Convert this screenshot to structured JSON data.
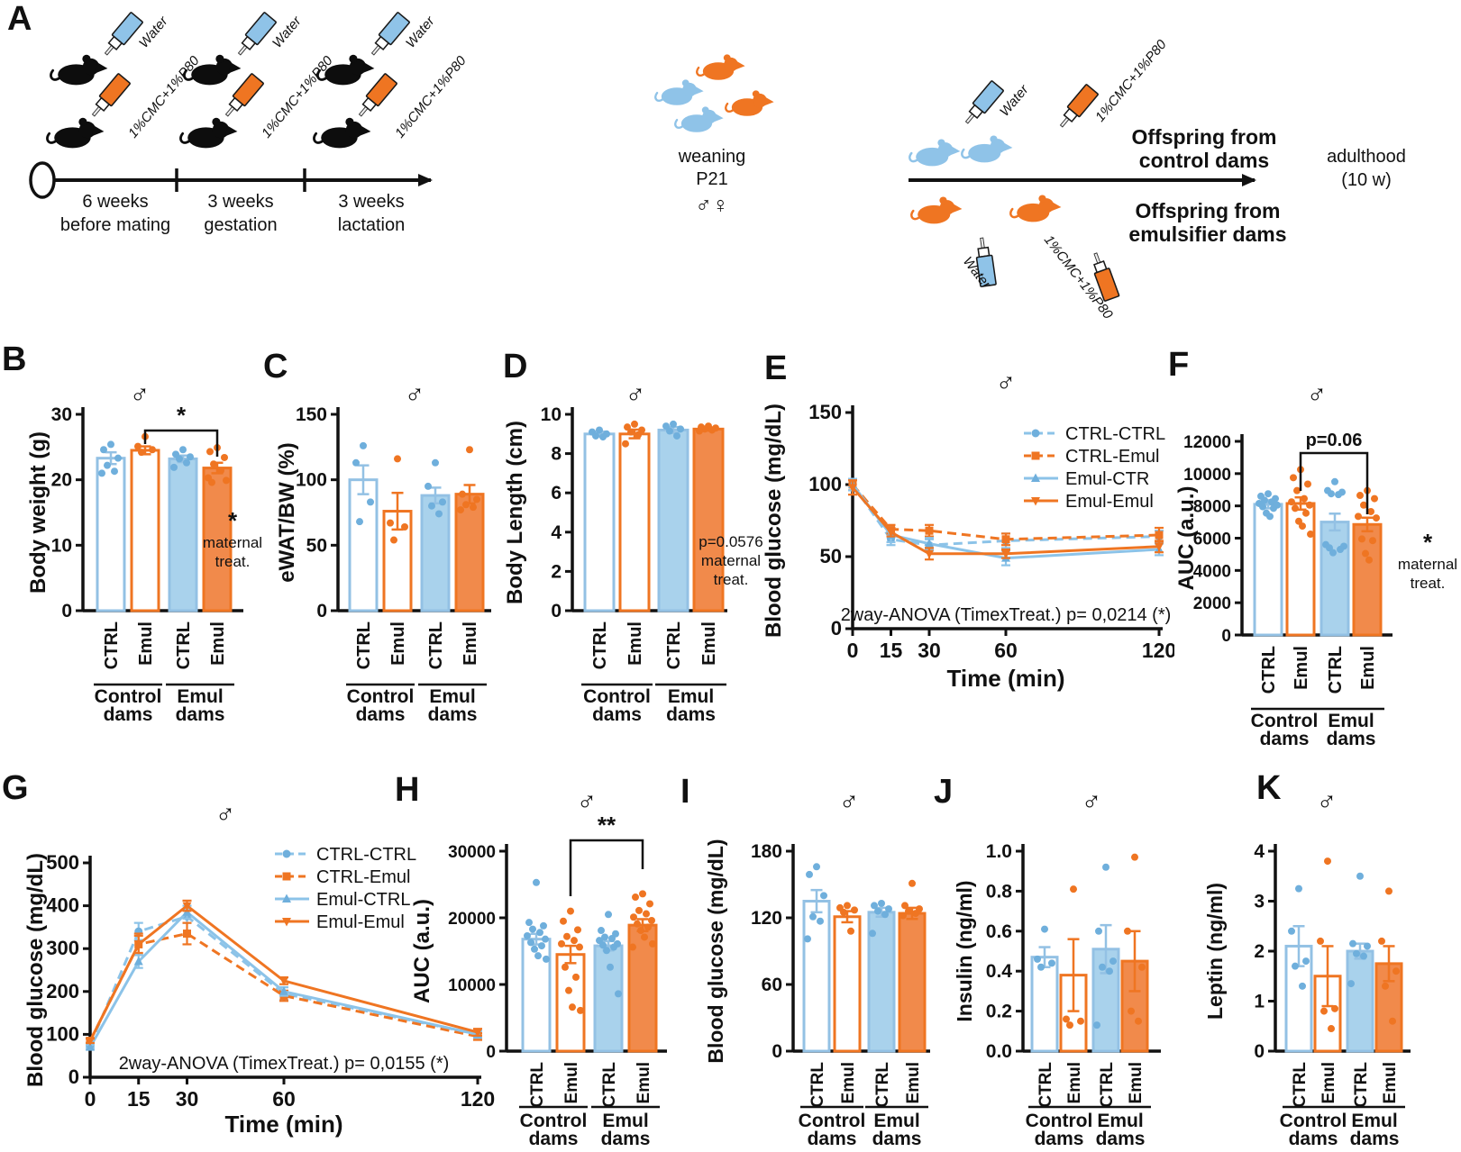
{
  "male_symbol": "♂",
  "colors": {
    "blue_fill": "#A9D2EC",
    "blue_stroke": "#93C1E4",
    "blue_marker": "#6FAFDC",
    "blue_line": "#8CC3E8",
    "blue_label": "#92C5E8",
    "orange_fill": "#F18A4B",
    "orange_stroke": "#EF7522",
    "orange_label": "#F0761F",
    "black": "#111111"
  },
  "panel_a": {
    "letter": "A",
    "bottle_water_label": "Water",
    "bottle_emul_label": "1%CMC+1%P80",
    "timeline": [
      {
        "line1": "6 weeks",
        "line2": "before mating"
      },
      {
        "line1": "3 weeks",
        "line2": "gestation"
      },
      {
        "line1": "3 weeks",
        "line2": "lactation"
      }
    ],
    "weaning": {
      "line1": "weaning",
      "line2": "P21",
      "symbols": "♂♀"
    },
    "offspring_control": {
      "line1": "Offspring from",
      "line2": "control dams"
    },
    "offspring_emul": {
      "line1": "Offspring from",
      "line2": "emulsifier dams"
    },
    "adulthood": {
      "line1": "adulthood",
      "line2": "(10 w)"
    }
  },
  "chart_data": [
    {
      "id": "B",
      "letter": "B",
      "type": "bar",
      "ylabel": "Body weight (g)",
      "ylim": [
        0,
        30
      ],
      "yticks": [
        0,
        10,
        20,
        30
      ],
      "categories": [
        "CTRL",
        "Emul",
        "CTRL",
        "Emul"
      ],
      "styles": [
        "blue-outline",
        "orange-outline",
        "blue-fill",
        "orange-fill"
      ],
      "values": [
        23.3,
        24.5,
        23.2,
        21.8
      ],
      "errors": [
        0.9,
        0.6,
        0.5,
        0.8
      ],
      "points": [
        [
          25.4,
          24.6,
          23.3,
          22.2,
          21.3,
          21.0
        ],
        [
          26.6,
          25.1,
          24.6,
          24.2
        ],
        [
          24.6,
          23.9,
          23.5,
          23.2,
          22.6,
          21.9
        ],
        [
          24.9,
          24.3,
          23.4,
          22.4,
          21.4,
          20.3,
          19.9,
          19.6
        ]
      ],
      "groups": [
        {
          "label": [
            "Control",
            "dams"
          ],
          "color": "blue"
        },
        {
          "label": [
            "Emul",
            "dams"
          ],
          "color": "orange"
        }
      ],
      "significance": {
        "from": 1,
        "to": 3,
        "label": "*"
      },
      "side_note": [
        "*",
        "maternal",
        "treat."
      ]
    },
    {
      "id": "C",
      "letter": "C",
      "type": "bar",
      "ylabel": "eWAT/BW (%)",
      "ylim": [
        0,
        150
      ],
      "yticks": [
        0,
        50,
        100,
        150
      ],
      "categories": [
        "CTRL",
        "Emul",
        "CTRL",
        "Emul"
      ],
      "styles": [
        "blue-outline",
        "orange-outline",
        "blue-fill",
        "orange-fill"
      ],
      "values": [
        100,
        76,
        88,
        89
      ],
      "errors": [
        11,
        14,
        6,
        7
      ],
      "points": [
        [
          126,
          113,
          83,
          68
        ],
        [
          116,
          67,
          64,
          54
        ],
        [
          113,
          95,
          83,
          80,
          74
        ],
        [
          123,
          89,
          85,
          81,
          79,
          77
        ]
      ],
      "groups": [
        {
          "label": [
            "Control",
            "dams"
          ],
          "color": "blue"
        },
        {
          "label": [
            "Emul",
            "dams"
          ],
          "color": "orange"
        }
      ]
    },
    {
      "id": "D",
      "letter": "D",
      "type": "bar",
      "ylabel": "Body Length (cm)",
      "ylim": [
        0,
        10
      ],
      "yticks": [
        0,
        2,
        4,
        6,
        8,
        10
      ],
      "categories": [
        "CTRL",
        "Emul",
        "CTRL",
        "Emul"
      ],
      "styles": [
        "blue-outline",
        "orange-outline",
        "blue-fill",
        "orange-fill"
      ],
      "values": [
        9.0,
        9.0,
        9.2,
        9.25
      ],
      "errors": [
        0.12,
        0.22,
        0.15,
        0.08
      ],
      "points": [
        [
          9.2,
          9.1,
          9.0,
          8.9,
          8.85
        ],
        [
          9.5,
          9.35,
          9.2,
          9.1,
          8.95,
          8.5
        ],
        [
          9.5,
          9.4,
          9.25,
          9.15,
          8.9
        ],
        [
          9.4,
          9.35,
          9.3,
          9.25,
          9.2,
          9.15
        ]
      ],
      "groups": [
        {
          "label": [
            "Control",
            "dams"
          ],
          "color": "blue"
        },
        {
          "label": [
            "Emul",
            "dams"
          ],
          "color": "orange"
        }
      ],
      "side_note": [
        "p=0.0576",
        "maternal",
        "treat."
      ]
    },
    {
      "id": "E",
      "letter": "E",
      "type": "line",
      "ylabel": "Blood glucose (mg/dL)",
      "xlabel": "Time (min)",
      "ylim": [
        0,
        150
      ],
      "yticks": [
        0,
        50,
        100,
        150
      ],
      "x": [
        0,
        15,
        30,
        60,
        120
      ],
      "series": [
        {
          "name": "CTRL-CTRL",
          "color": "blue",
          "dash": true,
          "marker": "circle",
          "values": [
            100,
            62,
            58,
            61,
            64
          ],
          "errors": [
            4,
            4,
            4,
            5,
            4
          ]
        },
        {
          "name": "CTRL-Emul",
          "color": "orange",
          "dash": true,
          "marker": "square",
          "values": [
            100,
            69,
            68,
            62,
            65
          ],
          "errors": [
            4,
            3,
            4,
            4,
            5
          ]
        },
        {
          "name": "Emul-CTR",
          "color": "blue",
          "dash": false,
          "marker": "tri-up",
          "values": [
            100,
            65,
            59,
            49,
            55
          ],
          "errors": [
            4,
            5,
            4,
            5,
            4
          ]
        },
        {
          "name": "Emul-Emul",
          "color": "orange",
          "dash": false,
          "marker": "tri-down",
          "values": [
            98,
            67,
            52,
            52,
            57
          ],
          "errors": [
            5,
            3,
            4,
            3,
            4
          ]
        }
      ],
      "annotation": "2way-ANOVA (TimexTreat.) p= 0,0214 (*)"
    },
    {
      "id": "F",
      "letter": "F",
      "type": "bar",
      "ylabel": "AUC (a.u.)",
      "ylim": [
        0,
        12000
      ],
      "yticks": [
        0,
        2000,
        4000,
        6000,
        8000,
        10000,
        12000
      ],
      "categories": [
        "CTRL",
        "Emul",
        "CTRL",
        "Emul"
      ],
      "styles": [
        "blue-outline",
        "orange-outline",
        "blue-fill",
        "orange-fill"
      ],
      "values": [
        8100,
        8150,
        7000,
        6850
      ],
      "errors": [
        250,
        380,
        520,
        420
      ],
      "points": [
        [
          8750,
          8600,
          8450,
          8350,
          8250,
          8150,
          8050,
          7950,
          7850,
          7550,
          7350
        ],
        [
          10250,
          9750,
          9350,
          8950,
          8450,
          8250,
          8050,
          7850,
          7550,
          7050,
          6750,
          6250
        ],
        [
          9500,
          8950,
          8850,
          8750,
          8700,
          5600,
          5500,
          5400,
          5300,
          5100
        ],
        [
          8950,
          8650,
          8450,
          8050,
          7650,
          7350,
          7250,
          5950,
          5850,
          5050,
          4650
        ]
      ],
      "groups": [
        {
          "label": [
            "Control",
            "dams"
          ],
          "color": "blue"
        },
        {
          "label": [
            "Emul",
            "dams"
          ],
          "color": "orange"
        }
      ],
      "significance": {
        "from": 1,
        "to": 3,
        "label": "p=0.06"
      },
      "side_note": [
        "*",
        "maternal",
        "treat."
      ]
    },
    {
      "id": "G",
      "letter": "G",
      "type": "line",
      "ylabel": "Blood glucose (mg/dL)",
      "xlabel": "Time (min)",
      "ylim": [
        0,
        500
      ],
      "yticks": [
        0,
        100,
        200,
        300,
        400,
        500
      ],
      "x": [
        0,
        15,
        30,
        60,
        120
      ],
      "series": [
        {
          "name": "CTRL-CTRL",
          "color": "blue",
          "dash": true,
          "marker": "circle",
          "values": [
            75,
            340,
            375,
            195,
            100
          ],
          "errors": [
            5,
            20,
            15,
            15,
            8
          ]
        },
        {
          "name": "CTRL-Emul",
          "color": "orange",
          "dash": true,
          "marker": "square",
          "values": [
            85,
            310,
            335,
            190,
            95
          ],
          "errors": [
            5,
            25,
            25,
            12,
            8
          ]
        },
        {
          "name": "Emul-CTRL",
          "color": "blue",
          "dash": false,
          "marker": "tri-up",
          "values": [
            70,
            270,
            385,
            200,
            100
          ],
          "errors": [
            5,
            15,
            15,
            10,
            8
          ]
        },
        {
          "name": "Emul-Emul",
          "color": "orange",
          "dash": false,
          "marker": "tri-down",
          "values": [
            85,
            310,
            400,
            225,
            105
          ],
          "errors": [
            5,
            20,
            12,
            8,
            8
          ]
        }
      ],
      "annotation": "2way-ANOVA (TimexTreat.) p= 0,0155 (*)"
    },
    {
      "id": "H",
      "letter": "H",
      "type": "bar",
      "ylabel": "AUC (a.u.)",
      "ylim": [
        0,
        30000
      ],
      "yticks": [
        0,
        10000,
        20000,
        30000
      ],
      "categories": [
        "CTRL",
        "Emul",
        "CTRL",
        "Emul"
      ],
      "styles": [
        "blue-outline",
        "orange-outline",
        "blue-fill",
        "orange-fill"
      ],
      "values": [
        16800,
        14500,
        15800,
        18900
      ],
      "errors": [
        800,
        1300,
        700,
        900
      ],
      "points": [
        [
          25300,
          19300,
          18800,
          18300,
          17800,
          17300,
          16800,
          16300,
          15800,
          15300,
          14300,
          13800
        ],
        [
          21000,
          19500,
          18200,
          17200,
          16600,
          16100,
          15600,
          12600,
          11100,
          9100,
          6600,
          6100
        ],
        [
          20500,
          18100,
          17600,
          17100,
          16900,
          16600,
          16100,
          15900,
          15600,
          15100,
          12600,
          8600
        ],
        [
          23600,
          23100,
          22100,
          21100,
          20600,
          20100,
          19600,
          19100,
          18600,
          18100,
          17100,
          16100,
          15600
        ]
      ],
      "groups": [
        {
          "label": [
            "Control",
            "dams"
          ],
          "color": "blue"
        },
        {
          "label": [
            "Emul",
            "dams"
          ],
          "color": "orange"
        }
      ],
      "significance": {
        "from": 1,
        "to": 3,
        "label": "**"
      }
    },
    {
      "id": "I",
      "letter": "I",
      "type": "bar",
      "ylabel": "Blood glucose (mg/dL)",
      "ylim": [
        0,
        180
      ],
      "yticks": [
        0,
        60,
        120,
        180
      ],
      "categories": [
        "CTRL",
        "Emul",
        "CTRL",
        "Emul"
      ],
      "styles": [
        "blue-outline",
        "orange-outline",
        "blue-fill",
        "orange-fill"
      ],
      "values": [
        135,
        121,
        125,
        124
      ],
      "errors": [
        10,
        5,
        4,
        5
      ],
      "points": [
        [
          166,
          159,
          140,
          121,
          117,
          101
        ],
        [
          131,
          129,
          127,
          125,
          108
        ],
        [
          133,
          131,
          128,
          126,
          123,
          106
        ],
        [
          151,
          131,
          128,
          126,
          124,
          122
        ]
      ],
      "groups": [
        {
          "label": [
            "Control",
            "dams"
          ],
          "color": "blue"
        },
        {
          "label": [
            "Emul",
            "dams"
          ],
          "color": "orange"
        }
      ]
    },
    {
      "id": "J",
      "letter": "J",
      "type": "bar",
      "ylabel": "Insulin (ng/ml)",
      "ylim": [
        0,
        1.0
      ],
      "yticks": [
        0,
        0.2,
        0.4,
        0.6,
        0.8,
        1.0
      ],
      "ytick_labels": [
        "0.0",
        "0.2",
        "0.4",
        "0.6",
        "0.8",
        "1.0"
      ],
      "categories": [
        "CTRL",
        "Emul",
        "CTRL",
        "Emul"
      ],
      "styles": [
        "blue-outline",
        "orange-outline",
        "blue-fill",
        "orange-fill"
      ],
      "values": [
        0.47,
        0.38,
        0.51,
        0.45
      ],
      "errors": [
        0.05,
        0.18,
        0.12,
        0.15
      ],
      "points": [
        [
          0.61,
          0.46,
          0.44,
          0.42
        ],
        [
          0.81,
          0.16,
          0.15,
          0.13
        ],
        [
          0.92,
          0.6,
          0.45,
          0.42,
          0.4,
          0.13
        ],
        [
          0.97,
          0.6,
          0.42,
          0.2,
          0.15
        ]
      ],
      "groups": [
        {
          "label": [
            "Control",
            "dams"
          ],
          "color": "blue"
        },
        {
          "label": [
            "Emul",
            "dams"
          ],
          "color": "orange"
        }
      ]
    },
    {
      "id": "K",
      "letter": "K",
      "type": "bar",
      "ylabel": "Leptin (ng/ml)",
      "ylim": [
        0,
        4
      ],
      "yticks": [
        0,
        1,
        2,
        3,
        4
      ],
      "categories": [
        "CTRL",
        "Emul",
        "CTRL",
        "Emul"
      ],
      "styles": [
        "blue-outline",
        "orange-outline",
        "blue-fill",
        "orange-fill"
      ],
      "values": [
        2.1,
        1.5,
        2.0,
        1.75
      ],
      "errors": [
        0.4,
        0.6,
        0.15,
        0.35
      ],
      "points": [
        [
          3.25,
          2.4,
          1.8,
          1.7,
          1.3
        ],
        [
          3.8,
          2.2,
          0.85,
          0.8,
          0.45
        ],
        [
          3.5,
          2.15,
          2.1,
          1.95,
          1.9,
          1.35
        ],
        [
          3.2,
          2.2,
          1.6,
          1.3,
          0.6
        ]
      ],
      "groups": [
        {
          "label": [
            "Control",
            "dams"
          ],
          "color": "blue"
        },
        {
          "label": [
            "Emul",
            "dams"
          ],
          "color": "orange"
        }
      ]
    }
  ]
}
